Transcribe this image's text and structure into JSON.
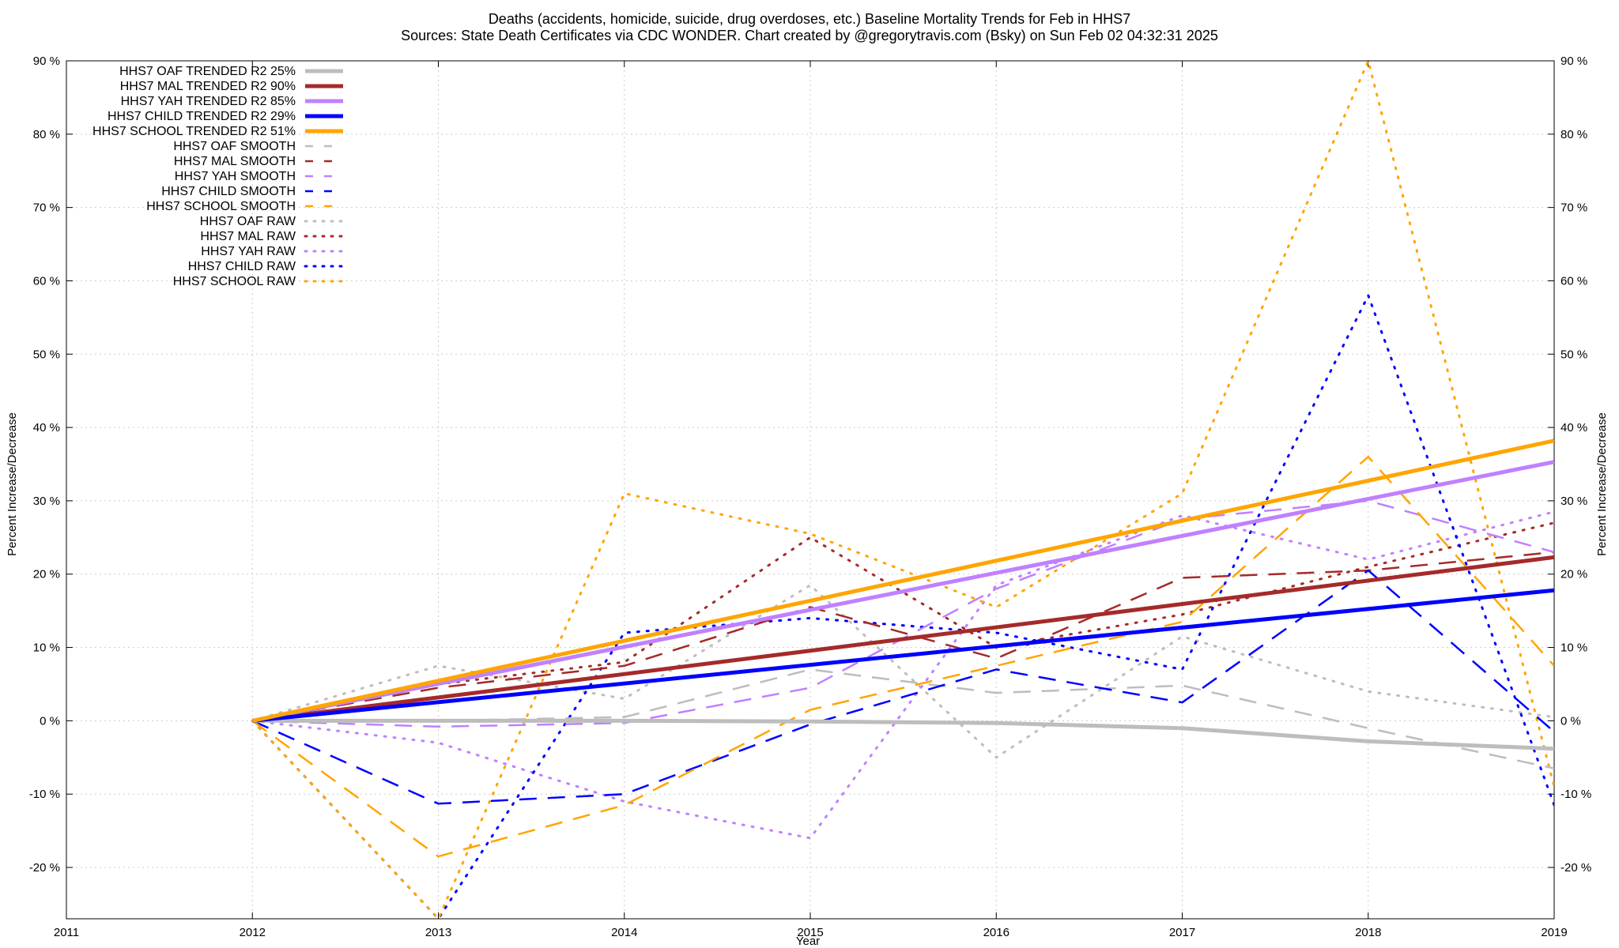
{
  "title_line1": "Deaths (accidents, homicide, suicide, drug overdoses, etc.)  Baseline Mortality Trends for Feb in HHS7",
  "title_line2": "Sources: State Death Certificates via CDC WONDER.               Chart created by @gregorytravis.com (Bsky) on Sun Feb 02 04:32:31 2025",
  "chart_data": {
    "type": "line",
    "xlabel": "Year",
    "ylabel": "Percent Increase/Decrease",
    "xlim": [
      2011,
      2019
    ],
    "ylim": [
      -27,
      90
    ],
    "grid": true,
    "legend_position": "top-left",
    "x_ticks": [
      "2011",
      "2012",
      "2013",
      "2014",
      "2015",
      "2016",
      "2017",
      "2018",
      "2019"
    ],
    "y_ticks": [
      {
        "value": 90,
        "label": "90 %"
      },
      {
        "value": 80,
        "label": "80 %"
      },
      {
        "value": 70,
        "label": "70 %"
      },
      {
        "value": 60,
        "label": "60 %"
      },
      {
        "value": 50,
        "label": "50 %"
      },
      {
        "value": 40,
        "label": "40 %"
      },
      {
        "value": 30,
        "label": "30 %"
      },
      {
        "value": 20,
        "label": "20 %"
      },
      {
        "value": 10,
        "label": "10 %"
      },
      {
        "value": 0,
        "label": "0 %"
      },
      {
        "value": -10,
        "label": "-10 %"
      },
      {
        "value": -20,
        "label": "-20 %"
      }
    ],
    "x": [
      2012,
      2013,
      2014,
      2015,
      2016,
      2017,
      2018,
      2019
    ],
    "series": [
      {
        "name": "HHS7 OAF TRENDED R2  25%",
        "key": "oaf-trended",
        "style": "solid",
        "color": "#bdbdbd",
        "points": [
          [
            2012,
            0
          ],
          [
            2013,
            0
          ],
          [
            2014,
            0
          ],
          [
            2015,
            -0.1
          ],
          [
            2016,
            -0.3
          ],
          [
            2017,
            -1
          ],
          [
            2018,
            -2.8
          ],
          [
            2019,
            -3.8
          ]
        ]
      },
      {
        "name": "HHS7 MAL TRENDED R2  90%",
        "key": "mal-trended",
        "style": "solid",
        "color": "#a52a2a",
        "points": [
          [
            2012,
            0
          ],
          [
            2019,
            22.3
          ]
        ]
      },
      {
        "name": "HHS7 YAH TRENDED R2  85%",
        "key": "yah-trended",
        "style": "solid",
        "color": "#c080ff",
        "points": [
          [
            2012,
            0
          ],
          [
            2019,
            35.3
          ]
        ]
      },
      {
        "name": "HHS7 CHILD TRENDED R2  29%",
        "key": "child-trended",
        "style": "solid",
        "color": "#0000ff",
        "points": [
          [
            2012,
            0
          ],
          [
            2019,
            17.8
          ]
        ]
      },
      {
        "name": "HHS7 SCHOOL TRENDED R2  51%",
        "key": "school-trended",
        "style": "solid",
        "color": "#ffa500",
        "points": [
          [
            2012,
            0
          ],
          [
            2019,
            38.2
          ]
        ]
      },
      {
        "name": "HHS7 OAF SMOOTH",
        "key": "oaf-smooth",
        "style": "dashed",
        "color": "#bdbdbd",
        "values": [
          0,
          0,
          0.5,
          7,
          3.8,
          4.8,
          -1,
          -6.5
        ]
      },
      {
        "name": "HHS7 MAL SMOOTH",
        "key": "mal-smooth",
        "style": "dashed",
        "color": "#a52a2a",
        "values": [
          0,
          4.5,
          7.5,
          15.5,
          8.5,
          19.5,
          20.5,
          23
        ]
      },
      {
        "name": "HHS7 YAH SMOOTH",
        "key": "yah-smooth",
        "style": "dashed",
        "color": "#c080ff",
        "values": [
          0,
          -0.8,
          -0.3,
          4.5,
          18,
          27.5,
          30,
          23
        ]
      },
      {
        "name": "HHS7 CHILD SMOOTH",
        "key": "child-smooth",
        "style": "dashed",
        "color": "#0000ff",
        "values": [
          0,
          -11.3,
          -10,
          -0.5,
          7,
          2.5,
          20.5,
          -1.5
        ]
      },
      {
        "name": "HHS7 SCHOOL SMOOTH",
        "key": "school-smooth",
        "style": "dashed",
        "color": "#ffa500",
        "values": [
          0,
          -18.5,
          -11.5,
          1.5,
          7.5,
          13.5,
          36,
          7.5
        ]
      },
      {
        "name": "HHS7 OAF RAW",
        "key": "oaf-raw",
        "style": "dotted",
        "color": "#bdbdbd",
        "values": [
          0,
          7.5,
          3,
          18.5,
          -5,
          11.5,
          4,
          0.5
        ]
      },
      {
        "name": "HHS7 MAL RAW",
        "key": "mal-raw",
        "style": "dotted",
        "color": "#a52a2a",
        "values": [
          0,
          5,
          8,
          25,
          10,
          14.5,
          21,
          27
        ]
      },
      {
        "name": "HHS7 YAH RAW",
        "key": "yah-raw",
        "style": "dotted",
        "color": "#c080ff",
        "values": [
          0,
          -3,
          -11,
          -16,
          18.5,
          28,
          22,
          28.5
        ]
      },
      {
        "name": "HHS7 CHILD RAW",
        "key": "child-raw",
        "style": "dotted",
        "color": "#0000ff",
        "values": [
          0,
          -27,
          12,
          14,
          12,
          7,
          58,
          -11.5
        ]
      },
      {
        "name": "HHS7 SCHOOL RAW",
        "key": "school-raw",
        "style": "dotted",
        "color": "#ffa500",
        "values": [
          0,
          -27,
          31,
          25.5,
          15.5,
          31,
          90,
          -9
        ]
      }
    ]
  }
}
